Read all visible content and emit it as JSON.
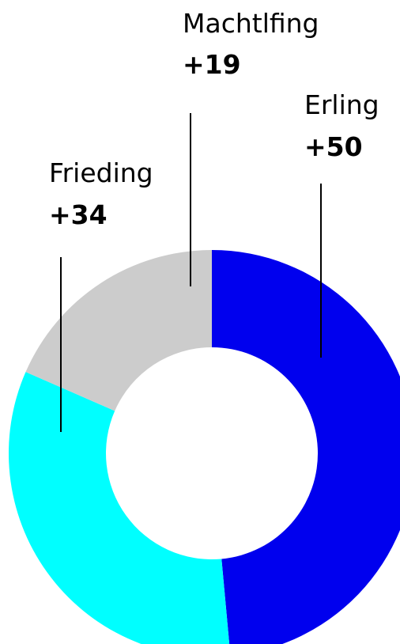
{
  "chart_data": {
    "type": "pie",
    "title": "",
    "slices": [
      {
        "name": "Erling",
        "value": 50,
        "value_label": "+50",
        "color": "#0000ee"
      },
      {
        "name": "Frieding",
        "value": 34,
        "value_label": "+34",
        "color": "#00ffff"
      },
      {
        "name": "Machtlfing",
        "value": 19,
        "value_label": "+19",
        "color": "#cccccc"
      }
    ],
    "donut": true,
    "legend": "none",
    "start": "top",
    "direction": "clockwise"
  }
}
